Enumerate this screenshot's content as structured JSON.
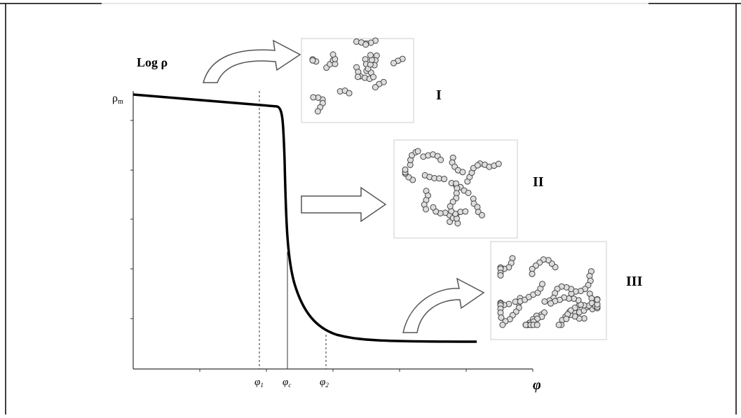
{
  "y_axis": {
    "label": "Log ρ",
    "max_label": {
      "symbol": "ρ",
      "subscript": "m"
    }
  },
  "x_axis": {
    "label": "φ",
    "marks": [
      {
        "symbol": "φ",
        "subscript": "1"
      },
      {
        "symbol": "φ",
        "subscript": "c"
      },
      {
        "symbol": "φ",
        "subscript": "2"
      }
    ]
  },
  "stages": [
    "I",
    "II",
    "III"
  ]
}
